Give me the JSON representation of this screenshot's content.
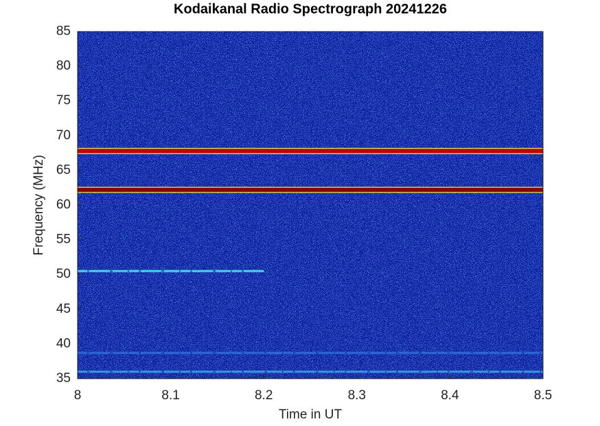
{
  "chart_data": {
    "type": "spectrogram",
    "title": "Kodaikanal Radio Spectrograph  20241226",
    "x_label": "Time in UT",
    "y_label": "Frequency (MHz)",
    "xlim": [
      8,
      8.5
    ],
    "xticks": [
      8,
      8.1,
      8.2,
      8.3,
      8.4,
      8.5
    ],
    "ylim": [
      35,
      85
    ],
    "yticks": [
      35,
      40,
      45,
      50,
      55,
      60,
      65,
      70,
      75,
      80,
      85
    ],
    "background_color": "#0a1a9c",
    "bands": [
      {
        "y": 67.8,
        "x": [
          8,
          8.5
        ],
        "color": "#c40000"
      },
      {
        "y": 62.2,
        "x": [
          8,
          8.5
        ],
        "color": "#8a0000"
      },
      {
        "y": 50.5,
        "x": [
          8,
          8.2
        ],
        "color": "#48d8e0"
      },
      {
        "y": 38.7,
        "x": [
          8,
          8.5
        ],
        "color": "#2f6ad8"
      },
      {
        "y": 36,
        "x": [
          8,
          8.5
        ],
        "color": "#3a9ae0"
      }
    ]
  }
}
